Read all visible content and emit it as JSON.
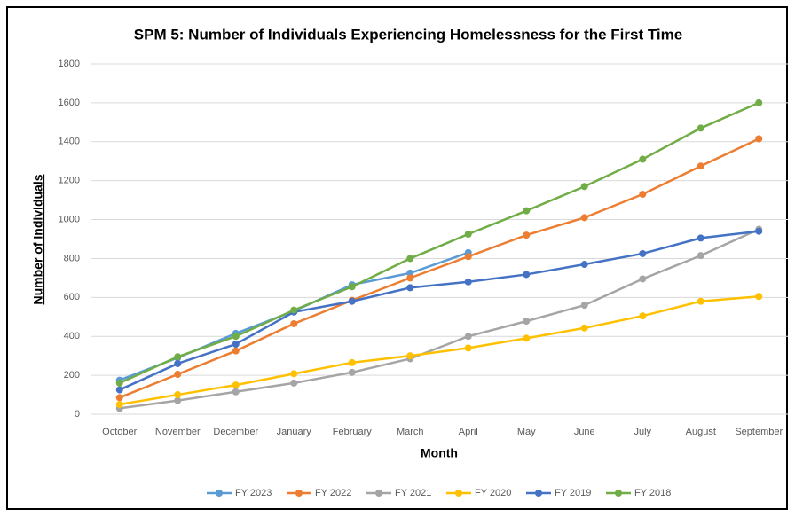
{
  "chart_data": {
    "type": "line",
    "title": "SPM 5: Number of Individuals Experiencing Homelessness for the First Time",
    "x_label": "Month",
    "y_label": "Number of Individuals",
    "categories": [
      "October",
      "November",
      "December",
      "January",
      "February",
      "March",
      "April",
      "May",
      "June",
      "July",
      "August",
      "September"
    ],
    "series": [
      {
        "name": "FY 2023",
        "color": "#5b9bd5",
        "values": [
          175,
          290,
          415,
          530,
          665,
          725,
          830,
          null,
          null,
          null,
          null,
          null
        ]
      },
      {
        "name": "FY 2022",
        "color": "#ed7d31",
        "values": [
          85,
          205,
          325,
          465,
          585,
          700,
          810,
          920,
          1010,
          1130,
          1275,
          1415
        ]
      },
      {
        "name": "FY 2021",
        "color": "#a5a5a5",
        "values": [
          30,
          70,
          115,
          160,
          215,
          285,
          400,
          478,
          560,
          695,
          815,
          950
        ]
      },
      {
        "name": "FY 2020",
        "color": "#ffc000",
        "values": [
          50,
          100,
          150,
          208,
          265,
          300,
          340,
          390,
          443,
          505,
          580,
          605
        ]
      },
      {
        "name": "FY 2019",
        "color": "#4472c4",
        "values": [
          125,
          260,
          360,
          525,
          580,
          650,
          680,
          718,
          770,
          825,
          905,
          940
        ]
      },
      {
        "name": "FY 2018",
        "color": "#70ad47",
        "values": [
          160,
          295,
          400,
          535,
          655,
          800,
          925,
          1045,
          1170,
          1310,
          1470,
          1600
        ]
      }
    ],
    "ylim": [
      0,
      1800
    ],
    "yticks": [
      0,
      200,
      400,
      600,
      800,
      1000,
      1200,
      1400,
      1600,
      1800
    ],
    "grid": true,
    "legend": "bottom"
  }
}
